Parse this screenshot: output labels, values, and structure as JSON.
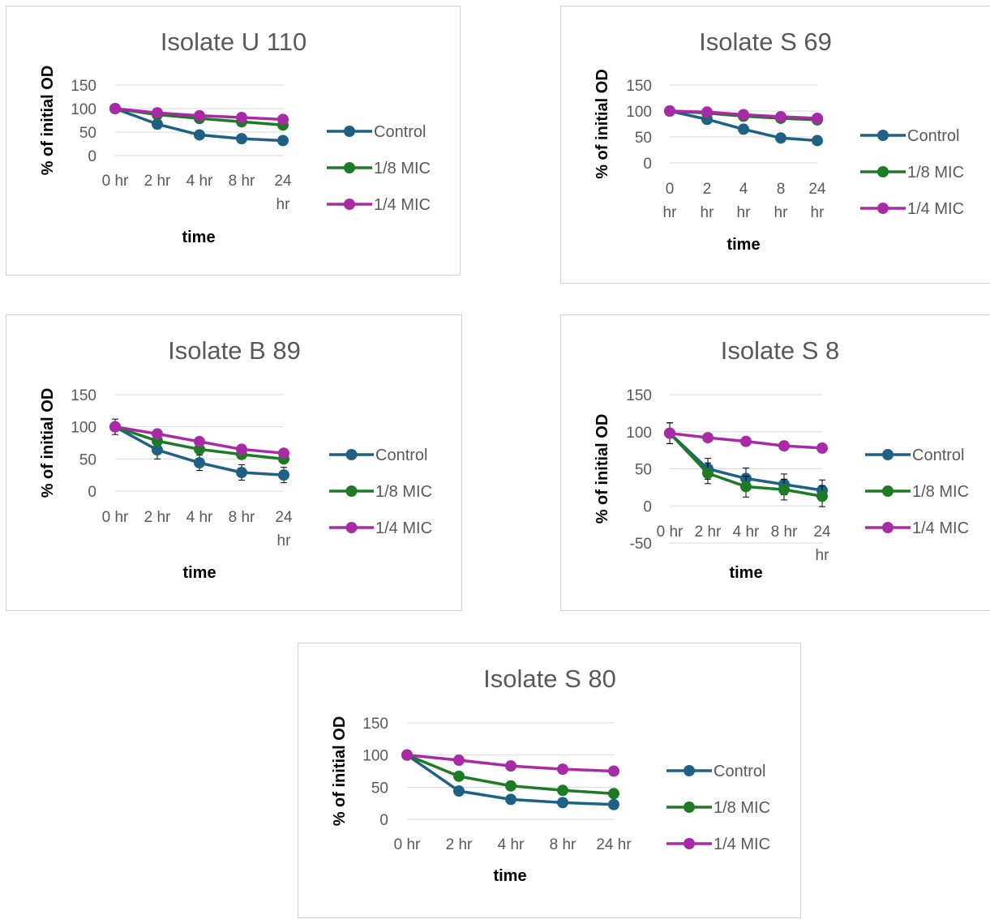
{
  "chart_data": [
    {
      "type": "line",
      "title": "Isolate U 110",
      "xlabel": "time",
      "ylabel": "% of initial OD",
      "categories": [
        "0 hr",
        "2 hr",
        "4 hr",
        "8 hr",
        "24 hr"
      ],
      "yticks": [
        "150",
        "100",
        "50",
        "0"
      ],
      "ylim": [
        0,
        150
      ],
      "error_bars": true,
      "legend_position": "right",
      "series": [
        {
          "name": "Control",
          "color": "#1f6185",
          "values": [
            100,
            67,
            44,
            36,
            32
          ],
          "errors": [
            8,
            10,
            9,
            8,
            7
          ]
        },
        {
          "name": "1/8 MIC",
          "color": "#1e7a25",
          "values": [
            100,
            87,
            79,
            72,
            65
          ],
          "errors": [
            0,
            0,
            0,
            0,
            0
          ]
        },
        {
          "name": "1/4 MIC",
          "color": "#a82ba5",
          "values": [
            100,
            91,
            85,
            81,
            77
          ],
          "errors": [
            0,
            0,
            0,
            0,
            0
          ]
        }
      ]
    },
    {
      "type": "line",
      "title": "Isolate S 69",
      "xlabel": "time",
      "ylabel": "% of initial OD",
      "categories": [
        "0 hr",
        "2 hr",
        "4 hr",
        "8 hr",
        "24 hr"
      ],
      "yticks": [
        "150",
        "100",
        "50",
        "0"
      ],
      "ylim": [
        0,
        150
      ],
      "error_bars": true,
      "legend_position": "right",
      "series": [
        {
          "name": "Control",
          "color": "#1f6185",
          "values": [
            100,
            84,
            65,
            48,
            43
          ],
          "errors": [
            6,
            8,
            7,
            8,
            6
          ]
        },
        {
          "name": "1/8 MIC",
          "color": "#1e7a25",
          "values": [
            100,
            96,
            90,
            86,
            83
          ],
          "errors": [
            0,
            0,
            0,
            0,
            0
          ]
        },
        {
          "name": "1/4 MIC",
          "color": "#a82ba5",
          "values": [
            100,
            98,
            93,
            89,
            86
          ],
          "errors": [
            0,
            0,
            0,
            0,
            0
          ]
        }
      ]
    },
    {
      "type": "line",
      "title": "Isolate B 89",
      "xlabel": "time",
      "ylabel": "% of initial OD",
      "categories": [
        "0 hr",
        "2 hr",
        "4 hr",
        "8 hr",
        "24 hr"
      ],
      "yticks": [
        "150",
        "100",
        "50",
        "0"
      ],
      "ylim": [
        0,
        150
      ],
      "error_bars": true,
      "legend_position": "right",
      "series": [
        {
          "name": "Control",
          "color": "#1f6185",
          "values": [
            100,
            64,
            44,
            29,
            25
          ],
          "errors": [
            12,
            14,
            12,
            12,
            12
          ]
        },
        {
          "name": "1/8 MIC",
          "color": "#1e7a25",
          "values": [
            100,
            78,
            65,
            57,
            50
          ],
          "errors": [
            0,
            0,
            0,
            0,
            0
          ]
        },
        {
          "name": "1/4 MIC",
          "color": "#a82ba5",
          "values": [
            100,
            89,
            77,
            65,
            59
          ],
          "errors": [
            0,
            0,
            0,
            0,
            0
          ]
        }
      ]
    },
    {
      "type": "line",
      "title": "Isolate S 8",
      "xlabel": "time",
      "ylabel": "% of initial OD",
      "categories": [
        "0 hr",
        "2 hr",
        "4 hr",
        "8 hr",
        "24 hr"
      ],
      "yticks": [
        "150",
        "100",
        "50",
        "0",
        "-50"
      ],
      "ylim": [
        -50,
        150
      ],
      "error_bars": true,
      "legend_position": "right",
      "series": [
        {
          "name": "Control",
          "color": "#1f6185",
          "values": [
            98,
            50,
            37,
            29,
            21
          ],
          "errors": [
            14,
            14,
            14,
            14,
            14
          ]
        },
        {
          "name": "1/8 MIC",
          "color": "#1e7a25",
          "values": [
            98,
            44,
            26,
            22,
            13
          ],
          "errors": [
            14,
            14,
            14,
            14,
            14
          ]
        },
        {
          "name": "1/4 MIC",
          "color": "#a82ba5",
          "values": [
            98,
            92,
            87,
            81,
            78
          ],
          "errors": [
            0,
            0,
            0,
            0,
            0
          ]
        }
      ]
    },
    {
      "type": "line",
      "title": "Isolate S 80",
      "xlabel": "time",
      "ylabel": "% of initial OD",
      "categories": [
        "0 hr",
        "2 hr",
        "4 hr",
        "8 hr",
        "24 hr"
      ],
      "yticks": [
        "150",
        "100",
        "50",
        "0"
      ],
      "ylim": [
        0,
        150
      ],
      "error_bars": false,
      "legend_position": "right",
      "series": [
        {
          "name": "Control",
          "color": "#1f6185",
          "values": [
            100,
            44,
            31,
            26,
            23
          ],
          "errors": [
            0,
            0,
            0,
            0,
            0
          ]
        },
        {
          "name": "1/8 MIC",
          "color": "#1e7a25",
          "values": [
            100,
            67,
            52,
            45,
            40
          ],
          "errors": [
            0,
            0,
            0,
            0,
            0
          ]
        },
        {
          "name": "1/4 MIC",
          "color": "#a82ba5",
          "values": [
            100,
            92,
            83,
            78,
            75
          ],
          "errors": [
            0,
            0,
            0,
            0,
            0
          ]
        }
      ]
    }
  ]
}
